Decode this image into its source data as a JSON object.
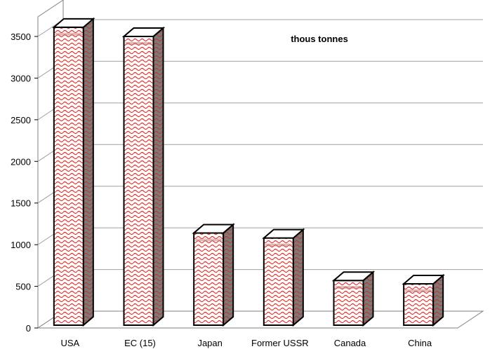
{
  "chart_data": {
    "type": "bar",
    "annotation": "thous tonnes",
    "categories": [
      "USA",
      "EC (15)",
      "Japan",
      "Former USSR",
      "Canada",
      "China"
    ],
    "values": [
      3560,
      3450,
      1090,
      1030,
      520,
      480
    ],
    "ylim": [
      0,
      3500
    ],
    "yticks": [
      "0",
      "500",
      "1000",
      "1500",
      "2000",
      "2500",
      "3000",
      "3500"
    ],
    "grid": true,
    "legend": "none",
    "colors": {
      "bar_pattern": "#e8302a",
      "bar_side": "#8a8a8a",
      "bar_outline": "#000000",
      "grid": "#a0a0a0",
      "wall": "#808080"
    }
  }
}
